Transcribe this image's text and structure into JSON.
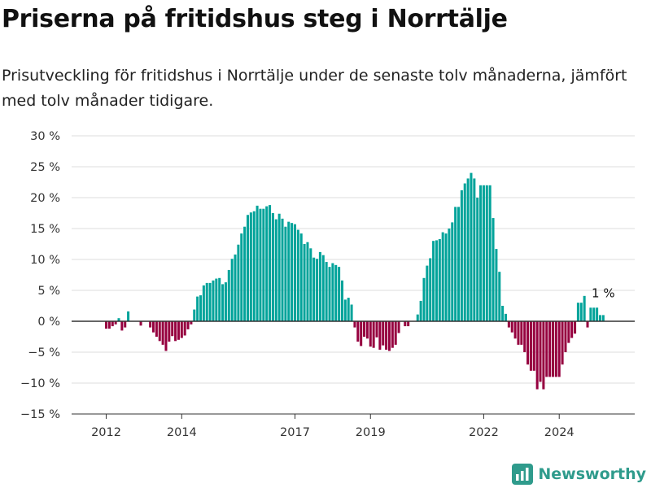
{
  "chart_data": {
    "type": "bar",
    "title": "Priserna på fritidshus steg i Norrtälje",
    "subtitle": "Prisutveckling för fritidshus i Norrtälje under de senaste tolv månaderna, jämfört med tolv månader tidigare.",
    "ylim": [
      -15,
      30
    ],
    "y_ticks": [
      -15,
      -10,
      -5,
      0,
      5,
      10,
      15,
      20,
      25,
      30
    ],
    "y_tick_labels": [
      "−15 %",
      "−10 %",
      "−5 %",
      "0 %",
      "5 %",
      "10 %",
      "15 %",
      "20 %",
      "25 %",
      "30 %"
    ],
    "x_ticks": [
      "2012-01",
      "2014-01",
      "2017-01",
      "2019-01",
      "2022-01",
      "2024-01"
    ],
    "x_tick_labels": [
      "2012",
      "2014",
      "2017",
      "2019",
      "2022",
      "2024"
    ],
    "grid": true,
    "colors": {
      "positive": "#00a39a",
      "negative": "#96003f",
      "grid": "#dddddd",
      "axis": "#333333"
    },
    "annotation": {
      "x": "2025-03",
      "text": "1 %"
    },
    "series": [
      {
        "x": [
          "2012-01",
          "2012-02",
          "2012-03",
          "2012-04",
          "2012-05",
          "2012-06",
          "2012-07",
          "2012-08",
          "2012-09",
          "2012-10",
          "2012-11",
          "2012-12",
          "2013-01",
          "2013-02",
          "2013-03",
          "2013-04",
          "2013-05",
          "2013-06",
          "2013-07",
          "2013-08",
          "2013-09",
          "2013-10",
          "2013-11",
          "2013-12",
          "2014-01",
          "2014-02",
          "2014-03",
          "2014-04",
          "2014-05",
          "2014-06",
          "2014-07",
          "2014-08",
          "2014-09",
          "2014-10",
          "2014-11",
          "2014-12",
          "2015-01",
          "2015-02",
          "2015-03",
          "2015-04",
          "2015-05",
          "2015-06",
          "2015-07",
          "2015-08",
          "2015-09",
          "2015-10",
          "2015-11",
          "2015-12",
          "2016-01",
          "2016-02",
          "2016-03",
          "2016-04",
          "2016-05",
          "2016-06",
          "2016-07",
          "2016-08",
          "2016-09",
          "2016-10",
          "2016-11",
          "2016-12",
          "2017-01",
          "2017-02",
          "2017-03",
          "2017-04",
          "2017-05",
          "2017-06",
          "2017-07",
          "2017-08",
          "2017-09",
          "2017-10",
          "2017-11",
          "2017-12",
          "2018-01",
          "2018-02",
          "2018-03",
          "2018-04",
          "2018-05",
          "2018-06",
          "2018-07",
          "2018-08",
          "2018-09",
          "2018-10",
          "2018-11",
          "2018-12",
          "2019-01",
          "2019-02",
          "2019-03",
          "2019-04",
          "2019-05",
          "2019-06",
          "2019-07",
          "2019-08",
          "2019-09",
          "2019-10",
          "2019-11",
          "2019-12",
          "2020-01",
          "2020-02",
          "2020-03",
          "2020-04",
          "2020-05",
          "2020-06",
          "2020-07",
          "2020-08",
          "2020-09",
          "2020-10",
          "2020-11",
          "2020-12",
          "2021-01",
          "2021-02",
          "2021-03",
          "2021-04",
          "2021-05",
          "2021-06",
          "2021-07",
          "2021-08",
          "2021-09",
          "2021-10",
          "2021-11",
          "2021-12",
          "2022-01",
          "2022-02",
          "2022-03",
          "2022-04",
          "2022-05",
          "2022-06",
          "2022-07",
          "2022-08",
          "2022-09",
          "2022-10",
          "2022-11",
          "2022-12",
          "2023-01",
          "2023-02",
          "2023-03",
          "2023-04",
          "2023-05",
          "2023-06",
          "2023-07",
          "2023-08",
          "2023-09",
          "2023-10",
          "2023-11",
          "2023-12",
          "2024-01",
          "2024-02",
          "2024-03",
          "2024-04",
          "2024-05",
          "2024-06",
          "2024-07",
          "2024-08",
          "2024-09",
          "2024-10",
          "2024-11",
          "2024-12",
          "2025-01",
          "2025-02",
          "2025-03"
        ],
        "values": [
          -1.2,
          -1.2,
          -0.8,
          -0.5,
          0.5,
          -1.5,
          -1,
          1.6,
          0,
          0,
          0,
          -0.7,
          0,
          0,
          -1,
          -1.8,
          -2.5,
          -3.2,
          -3.8,
          -4.8,
          -3.3,
          -2.4,
          -3.2,
          -3,
          -2.7,
          -2.3,
          -1.3,
          -0.5,
          1.9,
          4,
          4.2,
          5.8,
          6.2,
          6.2,
          6.6,
          6.9,
          7,
          6,
          6.3,
          8.3,
          10.1,
          10.8,
          12.4,
          14.2,
          15.3,
          17.2,
          17.6,
          17.8,
          18.7,
          18.2,
          18.2,
          18.6,
          18.8,
          17.5,
          16.5,
          17.4,
          16.6,
          15.3,
          16.1,
          15.9,
          15.7,
          14.8,
          14.2,
          12.5,
          12.8,
          11.8,
          10.3,
          10.1,
          11.2,
          10.7,
          9.6,
          8.8,
          9.4,
          9.1,
          8.8,
          6.6,
          3.5,
          3.8,
          2.7,
          -1,
          -3.3,
          -4,
          -2.5,
          -2.8,
          -4.1,
          -4.3,
          -2.6,
          -4.6,
          -3.9,
          -4.6,
          -4.8,
          -4.3,
          -3.8,
          -1.9,
          0,
          -0.8,
          -0.8,
          0,
          0,
          1.1,
          3.3,
          7,
          9,
          10.2,
          13,
          13.1,
          13.3,
          14.4,
          14.2,
          15,
          16,
          18.5,
          18.5,
          21.2,
          22.3,
          23.1,
          24,
          23.1,
          20,
          22,
          22,
          22,
          22,
          16.7,
          11.7,
          8,
          2.5,
          1.2,
          -1,
          -1.8,
          -2.8,
          -3.8,
          -3.8,
          -5,
          -7,
          -8,
          -8,
          -11,
          -9.8,
          -11,
          -9,
          -9,
          -9,
          -9,
          -9,
          -7,
          -5,
          -3.5,
          -2.7,
          -2,
          3,
          3,
          4.1,
          -1,
          2.2,
          2.2,
          2.2,
          1,
          1
        ]
      }
    ]
  },
  "brand": {
    "name": "Newsworthy",
    "icon": "bar-chart-logo-icon"
  }
}
